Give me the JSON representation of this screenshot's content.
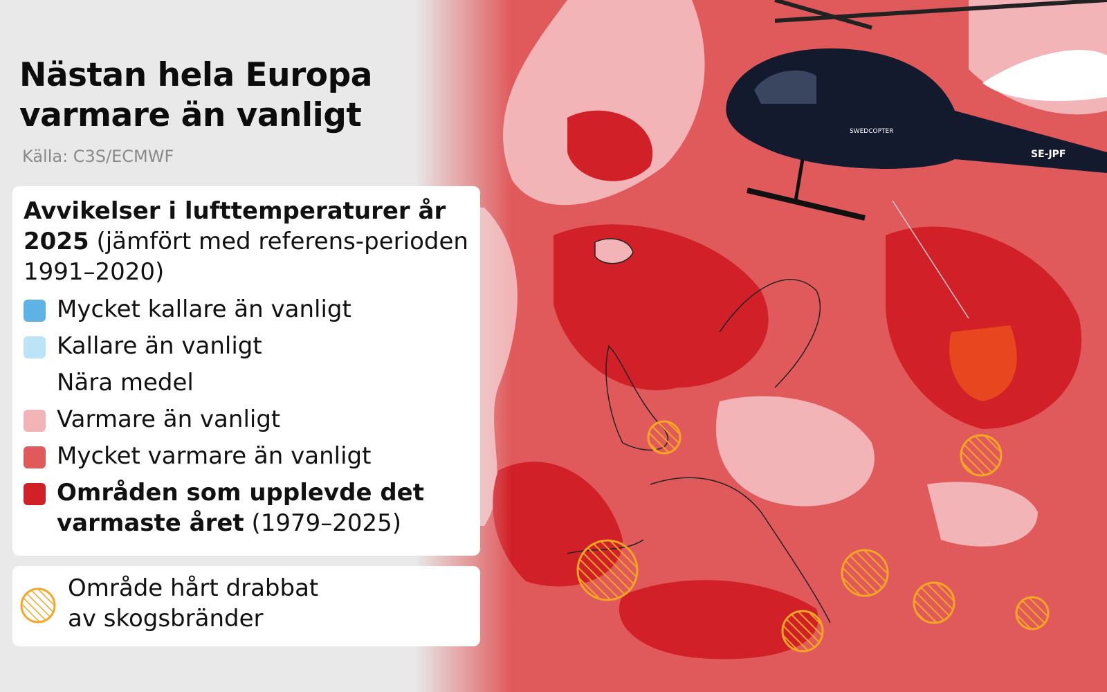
{
  "title_line1": "Nästan hela Europa",
  "title_line2": "varmare än vanligt",
  "source": "Källa: C3S/ECMWF",
  "legend": {
    "title_bold": "Avvikelser i lufttemperaturer år 2025",
    "title_rest": " (jämfört med referens-perioden 1991–2020)",
    "items": [
      {
        "label": "Mycket kallare än vanligt",
        "color": "#5fb2e6"
      },
      {
        "label": "Kallare än vanligt",
        "color": "#bde4f6"
      },
      {
        "label": "Nära medel",
        "color": "#ffffff"
      },
      {
        "label": "Varmare än vanligt",
        "color": "#f2b4b6"
      },
      {
        "label": "Mycket varmare än vanligt",
        "color": "#e05a5c"
      },
      {
        "label_bold": "Områden som upplevde det varmaste året",
        "label_rest": " (1979–2025)",
        "color": "#d12027"
      }
    ]
  },
  "wildfire_legend": {
    "line1": "Område hårt drabbat",
    "line2": "av skogsbränder",
    "icon": "hatched-circle-icon",
    "color": "#f5a623"
  },
  "map": {
    "helicopter_registration": "SE-JPF",
    "helicopter_operator": "SWEDCOPTER"
  }
}
